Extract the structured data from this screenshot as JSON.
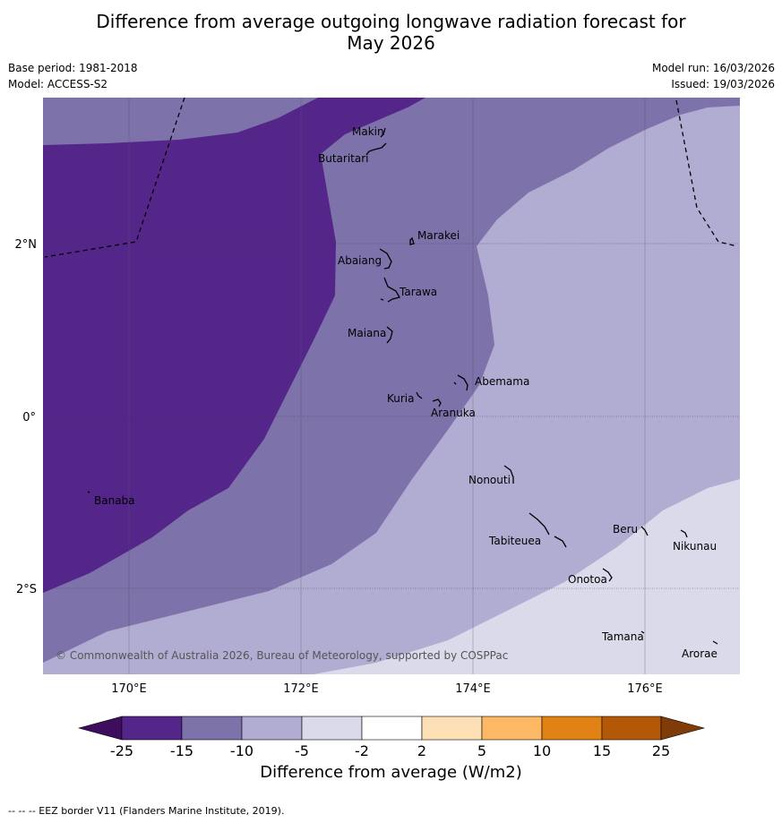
{
  "title": {
    "line1": "Difference from average outgoing longwave radiation forecast for",
    "line2": "May 2026"
  },
  "info": {
    "base_period": "Base period: 1981-2018",
    "model": "Model: ACCESS-S2",
    "model_run": "Model run: 16/03/2026",
    "issued": "Issued: 19/03/2026"
  },
  "copyright": "© Commonwealth of Australia 2026, Bureau of Meteorology, supported by COSPPac",
  "axes": {
    "x_ticks": [
      "170°E",
      "172°E",
      "174°E",
      "176°E"
    ],
    "y_ticks": [
      "2°N",
      "0°",
      "2°S"
    ]
  },
  "places": [
    "Makin",
    "Butaritari",
    "Marakei",
    "Abaiang",
    "Tarawa",
    "Maiana",
    "Abemama",
    "Kuria",
    "Aranuka",
    "Banaba",
    "Nonouti",
    "Beru",
    "Nikunau",
    "Tabiteuea",
    "Onotoa",
    "Tamana",
    "Arorae"
  ],
  "colorbar": {
    "ticks": [
      "-25",
      "-15",
      "-10",
      "-5",
      "-2",
      "2",
      "5",
      "10",
      "15",
      "25"
    ],
    "colors": [
      "#3f0d5e",
      "#54268a",
      "#7e72ab",
      "#b1acd2",
      "#dadaeb",
      "#ffffff",
      "#fee0b6",
      "#fdb863",
      "#e08214",
      "#b35806",
      "#7f3b08"
    ],
    "label": "Difference from average (W/m2)"
  },
  "footer": "--  --  -- EEZ border V11 (Flanders Marine Institute, 2019)."
}
